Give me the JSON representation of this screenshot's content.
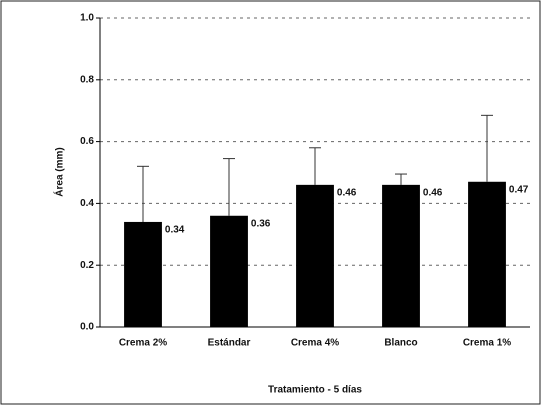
{
  "chart_data": {
    "type": "bar",
    "x_label": "Tratamiento - 5 días",
    "y_label": "Área (mm)",
    "categories": [
      "Crema 2%",
      "Estándar",
      "Crema 4%",
      "Blanco",
      "Crema 1%"
    ],
    "values": [
      0.34,
      0.36,
      0.46,
      0.46,
      0.47
    ],
    "errors": [
      0.18,
      0.185,
      0.12,
      0.035,
      0.215
    ],
    "color": "#000000",
    "ylim": [
      0,
      1.0
    ],
    "yticks": [
      {
        "value": 0,
        "label": "0.0"
      },
      0.2,
      0.4,
      0.6,
      0.8,
      {
        "value": 1.0,
        "label": "1.0"
      }
    ],
    "grid": true
  }
}
